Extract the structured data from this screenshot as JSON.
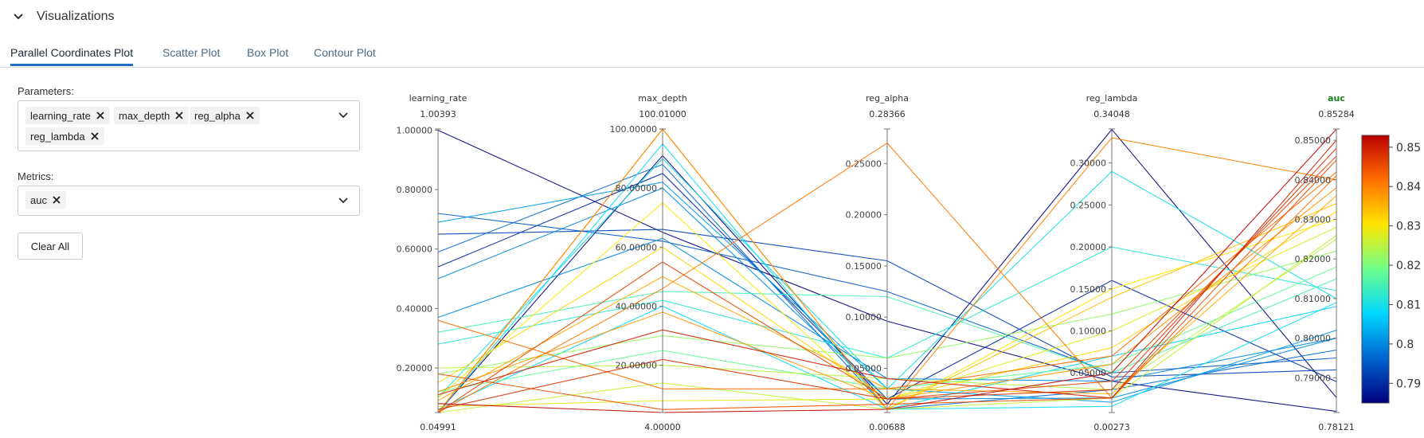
{
  "section": {
    "title": "Visualizations"
  },
  "tabs": [
    {
      "label": "Parallel Coordinates Plot",
      "active": true
    },
    {
      "label": "Scatter Plot",
      "active": false
    },
    {
      "label": "Box Plot",
      "active": false
    },
    {
      "label": "Contour Plot",
      "active": false
    }
  ],
  "params": {
    "label": "Parameters:",
    "selected": [
      "learning_rate",
      "max_depth",
      "reg_alpha",
      "reg_lambda"
    ]
  },
  "metrics": {
    "label": "Metrics:",
    "selected": [
      "auc"
    ]
  },
  "clear_all_label": "Clear All",
  "chart_data": {
    "type": "parallel_coordinates",
    "dimensions": [
      {
        "name": "learning_rate",
        "range": [
          0.04991,
          1.00393
        ],
        "max_label": "1.00393",
        "min_label": "0.04991",
        "ticks": [
          {
            "v": 0.2,
            "label": "0.20000"
          },
          {
            "v": 0.4,
            "label": "0.40000"
          },
          {
            "v": 0.6,
            "label": "0.60000"
          },
          {
            "v": 0.8,
            "label": "0.80000"
          },
          {
            "v": 1.0,
            "label": "1.00000"
          }
        ]
      },
      {
        "name": "max_depth",
        "range": [
          4,
          100.01
        ],
        "max_label": "100.01000",
        "min_label": "4.00000",
        "ticks": [
          {
            "v": 20,
            "label": "20.00000"
          },
          {
            "v": 40,
            "label": "40.00000"
          },
          {
            "v": 60,
            "label": "60.00000"
          },
          {
            "v": 80,
            "label": "80.00000"
          },
          {
            "v": 100,
            "label": "100.00000"
          }
        ]
      },
      {
        "name": "reg_alpha",
        "range": [
          0.00688,
          0.28366
        ],
        "max_label": "0.28366",
        "min_label": "0.00688",
        "ticks": [
          {
            "v": 0.05,
            "label": "0.05000"
          },
          {
            "v": 0.1,
            "label": "0.10000"
          },
          {
            "v": 0.15,
            "label": "0.15000"
          },
          {
            "v": 0.2,
            "label": "0.20000"
          },
          {
            "v": 0.25,
            "label": "0.25000"
          }
        ]
      },
      {
        "name": "reg_lambda",
        "range": [
          0.00273,
          0.34048
        ],
        "max_label": "0.34048",
        "min_label": "0.00273",
        "ticks": [
          {
            "v": 0.05,
            "label": "0.05000"
          },
          {
            "v": 0.1,
            "label": "0.10000"
          },
          {
            "v": 0.15,
            "label": "0.15000"
          },
          {
            "v": 0.2,
            "label": "0.20000"
          },
          {
            "v": 0.25,
            "label": "0.25000"
          },
          {
            "v": 0.3,
            "label": "0.30000"
          }
        ]
      },
      {
        "name": "auc",
        "range": [
          0.78121,
          0.85284
        ],
        "max_label": "0.85284",
        "min_label": "0.78121",
        "is_metric": true,
        "ticks": [
          {
            "v": 0.79,
            "label": "0.79000"
          },
          {
            "v": 0.8,
            "label": "0.80000"
          },
          {
            "v": 0.81,
            "label": "0.81000"
          },
          {
            "v": 0.82,
            "label": "0.82000"
          },
          {
            "v": 0.83,
            "label": "0.83000"
          },
          {
            "v": 0.84,
            "label": "0.84000"
          },
          {
            "v": 0.85,
            "label": "0.85000"
          }
        ]
      }
    ],
    "colorbar": {
      "range": [
        0.785,
        0.853
      ],
      "ticks": [
        {
          "v": 0.79,
          "label": "0.79"
        },
        {
          "v": 0.8,
          "label": "0.8"
        },
        {
          "v": 0.81,
          "label": "0.81"
        },
        {
          "v": 0.82,
          "label": "0.82"
        },
        {
          "v": 0.83,
          "label": "0.83"
        },
        {
          "v": 0.84,
          "label": "0.84"
        },
        {
          "v": 0.85,
          "label": "0.85"
        }
      ],
      "colorscale": [
        "#00007f",
        "#0064d1",
        "#00d6ff",
        "#6dff8a",
        "#ffe600",
        "#ff6e00",
        "#bd0000"
      ]
    },
    "rows": [
      [
        1.0,
        65,
        0.096,
        0.04,
        0.7815
      ],
      [
        0.05,
        91,
        0.015,
        0.34,
        0.785
      ],
      [
        0.65,
        66,
        0.155,
        0.045,
        0.792
      ],
      [
        0.72,
        62,
        0.125,
        0.05,
        0.795
      ],
      [
        0.54,
        85,
        0.02,
        0.16,
        0.789
      ],
      [
        0.59,
        88,
        0.01,
        0.03,
        0.797
      ],
      [
        0.5,
        80,
        0.02,
        0.02,
        0.8
      ],
      [
        0.69,
        82,
        0.03,
        0.015,
        0.802
      ],
      [
        0.05,
        95,
        0.01,
        0.01,
        0.809
      ],
      [
        0.1,
        90,
        0.03,
        0.29,
        0.81
      ],
      [
        0.28,
        42,
        0.06,
        0.2,
        0.812
      ],
      [
        0.37,
        63,
        0.04,
        0.04,
        0.8
      ],
      [
        0.32,
        45,
        0.12,
        0.05,
        0.815
      ],
      [
        0.06,
        40,
        0.01,
        0.07,
        0.808
      ],
      [
        0.18,
        30,
        0.06,
        0.12,
        0.822
      ],
      [
        0.12,
        25,
        0.03,
        0.06,
        0.818
      ],
      [
        0.2,
        20,
        0.04,
        0.03,
        0.825
      ],
      [
        0.05,
        14,
        0.01,
        0.02,
        0.826
      ],
      [
        0.07,
        8,
        0.02,
        0.1,
        0.828
      ],
      [
        0.1,
        75,
        0.01,
        0.15,
        0.83
      ],
      [
        0.15,
        60,
        0.02,
        0.08,
        0.832
      ],
      [
        0.05,
        100,
        0.01,
        0.14,
        0.834
      ],
      [
        0.09,
        50,
        0.03,
        0.025,
        0.836
      ],
      [
        0.12,
        38,
        0.02,
        0.06,
        0.838
      ],
      [
        0.05,
        46,
        0.27,
        0.02,
        0.841
      ],
      [
        0.05,
        100,
        0.01,
        0.33,
        0.84
      ],
      [
        0.36,
        12,
        0.03,
        0.07,
        0.842
      ],
      [
        0.18,
        5,
        0.015,
        0.02,
        0.845
      ],
      [
        0.06,
        22,
        0.02,
        0.03,
        0.848
      ],
      [
        0.08,
        4,
        0.01,
        0.05,
        0.8528
      ],
      [
        0.11,
        32,
        0.04,
        0.02,
        0.85
      ],
      [
        0.05,
        55,
        0.02,
        0.04,
        0.846
      ]
    ]
  }
}
